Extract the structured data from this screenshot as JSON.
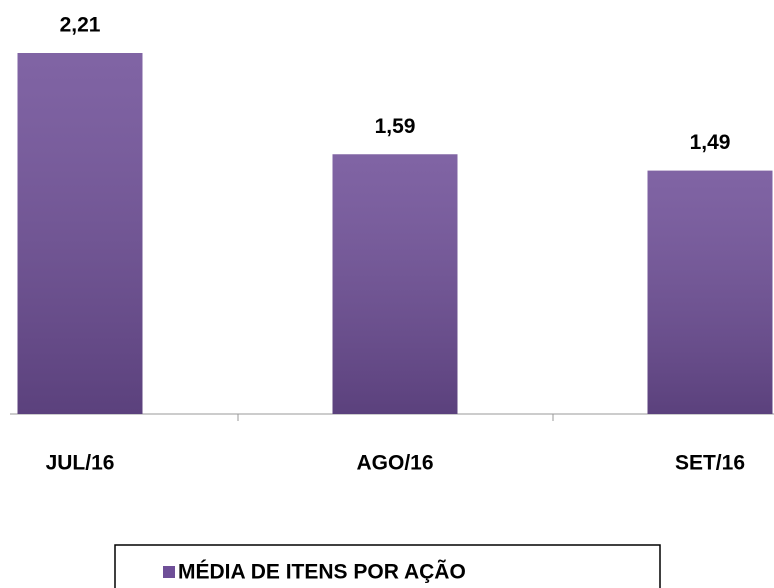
{
  "chart_data": {
    "type": "bar",
    "categories": [
      "JUL/16",
      "AGO/16",
      "SET/16"
    ],
    "series": [
      {
        "name": "MÉDIA DE ITENS POR AÇÃO",
        "color": "#6f4f98",
        "values": [
          2.21,
          1.59,
          1.49
        ],
        "value_labels": [
          "2,21",
          "1,59",
          "1,49"
        ]
      }
    ]
  }
}
